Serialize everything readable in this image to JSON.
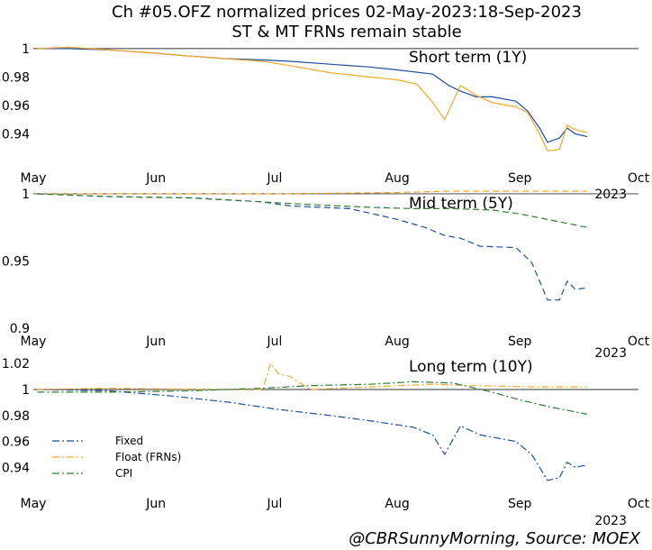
{
  "title_line1": "Ch #05.OFZ normalized prices 02-May-2023:18-Sep-2023",
  "title_line2": "ST & MT FRNs remain stable",
  "credit": "@CBRSunnyMorning, Source: MOEX",
  "chart_data": {
    "type": "line",
    "x_axis": {
      "range": [
        "2023-05-01",
        "2023-10-01"
      ],
      "tick_labels": [
        "May",
        "Jun",
        "Jul",
        "Aug",
        "Sep",
        "Oct"
      ],
      "year_label": "2023"
    },
    "legend": {
      "placement": "lower-left",
      "entries": [
        {
          "name": "Fixed",
          "color": "#1f4e9c"
        },
        {
          "name": "Float (FRNs)",
          "color": "#f0a830"
        },
        {
          "name": "CPI",
          "color": "#2e7d32"
        }
      ]
    },
    "panels": [
      {
        "title": "Short term (1Y)",
        "ylim": [
          0.925,
          1.005
        ],
        "y_ticks": [
          "0.94",
          "0.96",
          "0.98",
          "1"
        ],
        "y_tick_values": [
          0.94,
          0.96,
          0.98,
          1.0
        ],
        "reference_line": 1.0,
        "line_style": "solid",
        "series": [
          {
            "name": "Fixed",
            "color": "#1f4e9c",
            "points": [
              [
                "2023-05-02",
                1.0
              ],
              [
                "2023-05-10",
                1.0
              ],
              [
                "2023-05-20",
                0.999
              ],
              [
                "2023-05-31",
                0.997
              ],
              [
                "2023-06-08",
                0.995
              ],
              [
                "2023-06-18",
                0.993
              ],
              [
                "2023-06-28",
                0.992
              ],
              [
                "2023-07-05",
                0.991
              ],
              [
                "2023-07-15",
                0.989
              ],
              [
                "2023-07-25",
                0.987
              ],
              [
                "2023-08-01",
                0.985
              ],
              [
                "2023-08-10",
                0.982
              ],
              [
                "2023-08-14",
                0.974
              ],
              [
                "2023-08-17",
                0.97
              ],
              [
                "2023-08-21",
                0.966
              ],
              [
                "2023-08-25",
                0.966
              ],
              [
                "2023-08-31",
                0.963
              ],
              [
                "2023-09-03",
                0.956
              ],
              [
                "2023-09-06",
                0.944
              ],
              [
                "2023-09-08",
                0.934
              ],
              [
                "2023-09-11",
                0.937
              ],
              [
                "2023-09-13",
                0.944
              ],
              [
                "2023-09-15",
                0.94
              ],
              [
                "2023-09-18",
                0.938
              ]
            ]
          },
          {
            "name": "Float (FRNs)",
            "color": "#f0a830",
            "points": [
              [
                "2023-05-02",
                1.0
              ],
              [
                "2023-05-10",
                1.001
              ],
              [
                "2023-05-20",
                0.999
              ],
              [
                "2023-05-31",
                0.997
              ],
              [
                "2023-06-08",
                0.995
              ],
              [
                "2023-06-18",
                0.993
              ],
              [
                "2023-06-28",
                0.991
              ],
              [
                "2023-07-05",
                0.988
              ],
              [
                "2023-07-15",
                0.983
              ],
              [
                "2023-07-25",
                0.98
              ],
              [
                "2023-08-01",
                0.978
              ],
              [
                "2023-08-06",
                0.975
              ],
              [
                "2023-08-10",
                0.962
              ],
              [
                "2023-08-13",
                0.95
              ],
              [
                "2023-08-17",
                0.974
              ],
              [
                "2023-08-21",
                0.967
              ],
              [
                "2023-08-25",
                0.962
              ],
              [
                "2023-08-31",
                0.959
              ],
              [
                "2023-09-03",
                0.955
              ],
              [
                "2023-09-06",
                0.94
              ],
              [
                "2023-09-08",
                0.928
              ],
              [
                "2023-09-11",
                0.929
              ],
              [
                "2023-09-13",
                0.946
              ],
              [
                "2023-09-15",
                0.943
              ],
              [
                "2023-09-18",
                0.941
              ]
            ]
          }
        ]
      },
      {
        "title": "Mid term (5Y)",
        "ylim": [
          0.9,
          1.002
        ],
        "y_ticks": [
          "0.9",
          "0.95",
          "1"
        ],
        "y_tick_values": [
          0.9,
          0.95,
          1.0
        ],
        "reference_line": 1.0,
        "line_style": "dashed",
        "series": [
          {
            "name": "Fixed",
            "color": "#1f4e9c",
            "points": [
              [
                "2023-05-02",
                1.0
              ],
              [
                "2023-05-20",
                0.998
              ],
              [
                "2023-06-10",
                0.997
              ],
              [
                "2023-06-28",
                0.994
              ],
              [
                "2023-07-05",
                0.991
              ],
              [
                "2023-07-20",
                0.989
              ],
              [
                "2023-08-01",
                0.981
              ],
              [
                "2023-08-08",
                0.975
              ],
              [
                "2023-08-13",
                0.969
              ],
              [
                "2023-08-17",
                0.967
              ],
              [
                "2023-08-22",
                0.961
              ],
              [
                "2023-08-31",
                0.96
              ],
              [
                "2023-09-04",
                0.949
              ],
              [
                "2023-09-08",
                0.921
              ],
              [
                "2023-09-11",
                0.921
              ],
              [
                "2023-09-13",
                0.935
              ],
              [
                "2023-09-15",
                0.929
              ],
              [
                "2023-09-18",
                0.93
              ]
            ]
          },
          {
            "name": "Float (FRNs)",
            "color": "#f0a830",
            "points": [
              [
                "2023-05-02",
                1.0
              ],
              [
                "2023-06-01",
                1.0
              ],
              [
                "2023-07-01",
                1.0
              ],
              [
                "2023-08-01",
                1.001
              ],
              [
                "2023-08-15",
                1.002
              ],
              [
                "2023-09-01",
                1.002
              ],
              [
                "2023-09-18",
                1.002
              ]
            ]
          },
          {
            "name": "CPI",
            "color": "#2e7d32",
            "points": [
              [
                "2023-05-02",
                1.0
              ],
              [
                "2023-05-20",
                0.998
              ],
              [
                "2023-06-10",
                0.997
              ],
              [
                "2023-06-28",
                0.994
              ],
              [
                "2023-07-10",
                0.992
              ],
              [
                "2023-07-25",
                0.99
              ],
              [
                "2023-08-05",
                0.989
              ],
              [
                "2023-08-15",
                0.989
              ],
              [
                "2023-08-25",
                0.988
              ],
              [
                "2023-09-01",
                0.985
              ],
              [
                "2023-09-08",
                0.981
              ],
              [
                "2023-09-18",
                0.975
              ]
            ]
          }
        ]
      },
      {
        "title": "Long term (10Y)",
        "ylim": [
          0.925,
          1.025
        ],
        "y_ticks": [
          "0.94",
          "0.96",
          "0.98",
          "1",
          "1.02"
        ],
        "y_tick_values": [
          0.94,
          0.96,
          0.98,
          1.0,
          1.02
        ],
        "reference_line": 1.0,
        "line_style": "dashdot",
        "series": [
          {
            "name": "Fixed",
            "color": "#1f4e9c",
            "points": [
              [
                "2023-05-02",
                1.0
              ],
              [
                "2023-05-20",
                0.999
              ],
              [
                "2023-06-05",
                0.995
              ],
              [
                "2023-06-20",
                0.99
              ],
              [
                "2023-07-01",
                0.985
              ],
              [
                "2023-07-15",
                0.98
              ],
              [
                "2023-07-25",
                0.976
              ],
              [
                "2023-08-05",
                0.971
              ],
              [
                "2023-08-10",
                0.965
              ],
              [
                "2023-08-13",
                0.95
              ],
              [
                "2023-08-17",
                0.972
              ],
              [
                "2023-08-22",
                0.965
              ],
              [
                "2023-08-31",
                0.96
              ],
              [
                "2023-09-04",
                0.95
              ],
              [
                "2023-09-08",
                0.93
              ],
              [
                "2023-09-11",
                0.932
              ],
              [
                "2023-09-13",
                0.944
              ],
              [
                "2023-09-15",
                0.94
              ],
              [
                "2023-09-18",
                0.942
              ]
            ]
          },
          {
            "name": "Float (FRNs)",
            "color": "#f0a830",
            "points": [
              [
                "2023-05-02",
                1.0
              ],
              [
                "2023-05-20",
                1.001
              ],
              [
                "2023-06-15",
                1.0
              ],
              [
                "2023-06-28",
                1.0
              ],
              [
                "2023-06-30",
                1.02
              ],
              [
                "2023-07-02",
                1.012
              ],
              [
                "2023-07-05",
                1.01
              ],
              [
                "2023-07-10",
                1.0
              ],
              [
                "2023-07-25",
                1.002
              ],
              [
                "2023-08-10",
                1.004
              ],
              [
                "2023-08-20",
                1.003
              ],
              [
                "2023-09-05",
                1.002
              ],
              [
                "2023-09-18",
                1.002
              ]
            ]
          },
          {
            "name": "CPI",
            "color": "#2e7d32",
            "points": [
              [
                "2023-05-02",
                0.998
              ],
              [
                "2023-05-20",
                0.998
              ],
              [
                "2023-06-10",
                0.999
              ],
              [
                "2023-06-28",
                1.001
              ],
              [
                "2023-07-10",
                1.003
              ],
              [
                "2023-07-25",
                1.004
              ],
              [
                "2023-08-05",
                1.006
              ],
              [
                "2023-08-15",
                1.005
              ],
              [
                "2023-08-25",
                0.998
              ],
              [
                "2023-09-01",
                0.992
              ],
              [
                "2023-09-08",
                0.987
              ],
              [
                "2023-09-18",
                0.981
              ]
            ]
          }
        ]
      }
    ]
  }
}
